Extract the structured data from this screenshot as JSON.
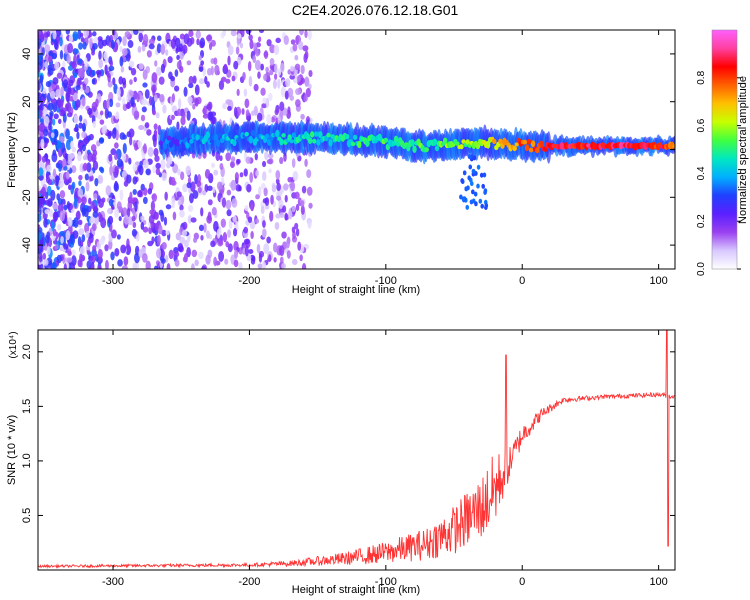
{
  "chart_data": [
    {
      "type": "heatmap",
      "title": "C2E4.2026.076.12.18.G01",
      "xlabel": "Height of straight line (km)",
      "ylabel": "Frequency (Hz)",
      "xlim": [
        -355,
        112
      ],
      "ylim": [
        -50,
        50
      ],
      "xticks": [
        -300,
        -200,
        -100,
        0,
        100
      ],
      "yticks": [
        -40,
        -20,
        0,
        20,
        40
      ],
      "colorbar": {
        "label": "Normalized spectral amplitude",
        "range": [
          0,
          1
        ],
        "ticks": [
          0.0,
          0.2,
          0.4,
          0.6,
          0.8
        ],
        "stops": [
          "#ffffff",
          "#d8c8ff",
          "#9a40f0",
          "#5a20ff",
          "#2040ff",
          "#00b0ff",
          "#00e8c0",
          "#40ff40",
          "#c8ff00",
          "#ffc000",
          "#ff6000",
          "#ff0000",
          "#ff40a0",
          "#ff60ff"
        ]
      },
      "band": {
        "segments": [
          {
            "x": -265,
            "f": 3,
            "amp": 0.28
          },
          {
            "x": -240,
            "f": 4,
            "amp": 0.35
          },
          {
            "x": -200,
            "f": 5,
            "amp": 0.4
          },
          {
            "x": -150,
            "f": 5,
            "amp": 0.45
          },
          {
            "x": -100,
            "f": 3,
            "amp": 0.5
          },
          {
            "x": -70,
            "f": 1,
            "amp": 0.5
          },
          {
            "x": -50,
            "f": 2,
            "amp": 0.55
          },
          {
            "x": -30,
            "f": 3,
            "amp": 0.6
          },
          {
            "x": -15,
            "f": 2,
            "amp": 0.7
          },
          {
            "x": 20,
            "f": 1.5,
            "amp": 0.85
          },
          {
            "x": 80,
            "f": 1.5,
            "amp": 0.9
          },
          {
            "x": 110,
            "f": 1.5,
            "amp": 0.8
          }
        ]
      }
    },
    {
      "type": "line",
      "xlabel": "Height of straight line (km)",
      "ylabel": "SNR (10 * v/v)",
      "exponent_label": "(x10⁴)",
      "xlim": [
        -355,
        112
      ],
      "ylim": [
        0,
        2.2
      ],
      "xticks": [
        -300,
        -200,
        -100,
        0,
        100
      ],
      "yticks": [
        0.5,
        1.0,
        1.5,
        2.0
      ],
      "color": "#ff3333",
      "series": [
        {
          "name": "SNR",
          "envelope": [
            {
              "x": -355,
              "base": 0.03,
              "noise": 0.02
            },
            {
              "x": -200,
              "base": 0.04,
              "noise": 0.03
            },
            {
              "x": -170,
              "base": 0.05,
              "noise": 0.05
            },
            {
              "x": -130,
              "base": 0.08,
              "noise": 0.12
            },
            {
              "x": -100,
              "base": 0.12,
              "noise": 0.2
            },
            {
              "x": -70,
              "base": 0.18,
              "noise": 0.3
            },
            {
              "x": -50,
              "base": 0.28,
              "noise": 0.45
            },
            {
              "x": -30,
              "base": 0.45,
              "noise": 0.6
            },
            {
              "x": -20,
              "base": 0.6,
              "noise": 0.7
            },
            {
              "x": -10,
              "base": 0.9,
              "noise": 0.3
            },
            {
              "x": 0,
              "base": 1.2,
              "noise": 0.2
            },
            {
              "x": 15,
              "base": 1.42,
              "noise": 0.1
            },
            {
              "x": 30,
              "base": 1.55,
              "noise": 0.05
            },
            {
              "x": 60,
              "base": 1.58,
              "noise": 0.04
            },
            {
              "x": 100,
              "base": 1.6,
              "noise": 0.04
            },
            {
              "x": 112,
              "base": 1.58,
              "noise": 0.04
            }
          ],
          "spikes": [
            {
              "x": -12,
              "y": 1.97
            },
            {
              "x": 106,
              "y": 2.2
            },
            {
              "x": 107,
              "y": 0.22
            }
          ]
        }
      ]
    }
  ]
}
